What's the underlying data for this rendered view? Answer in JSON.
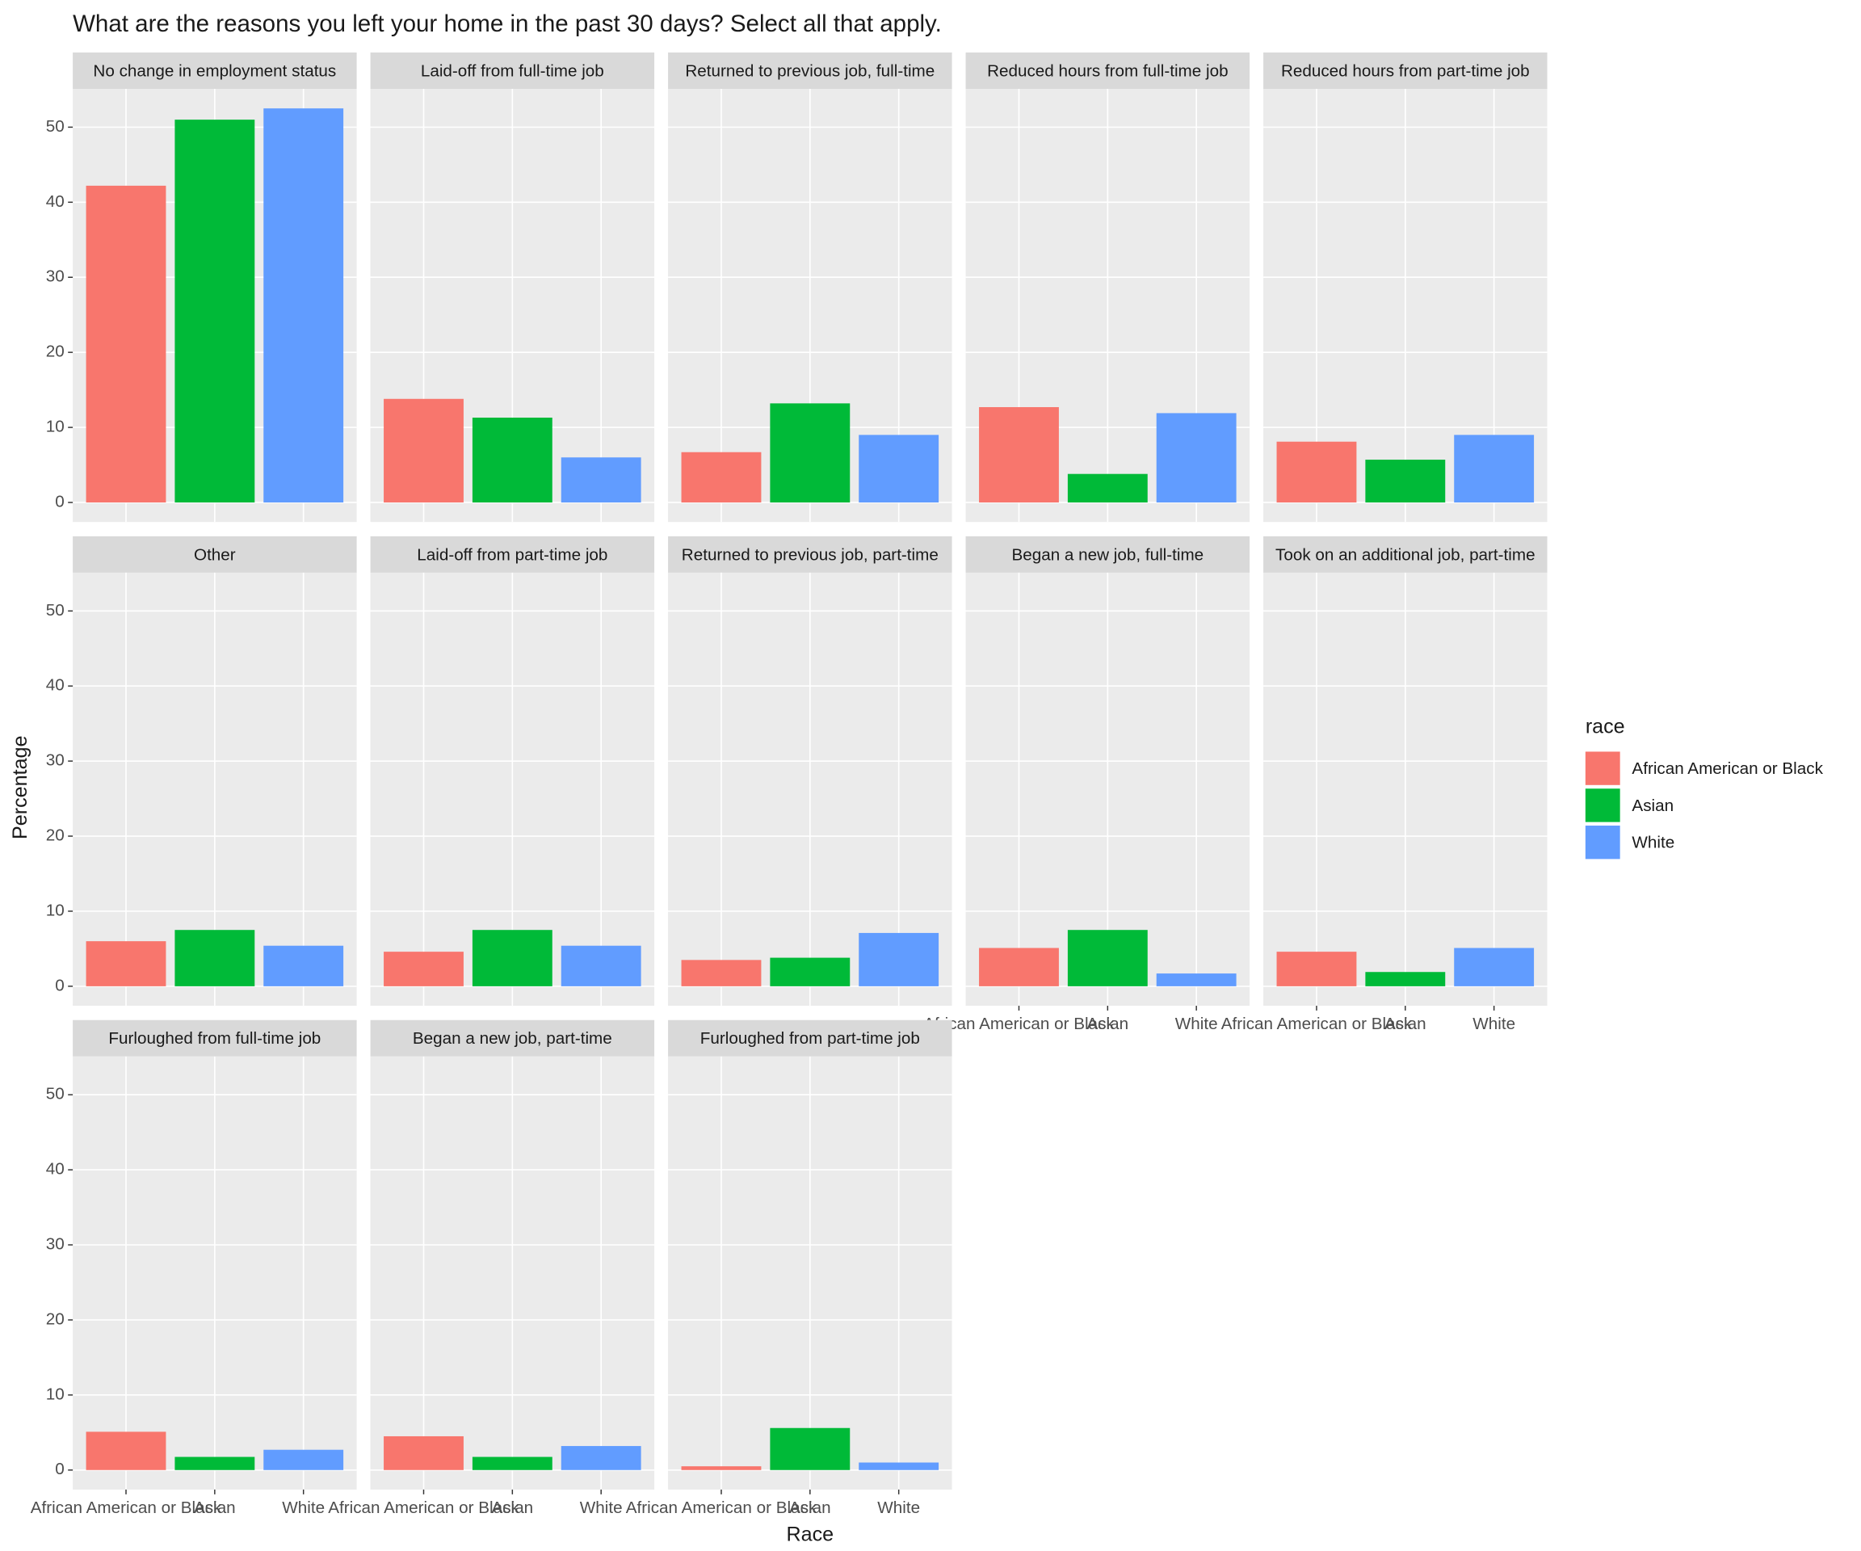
{
  "chart_data": {
    "type": "bar",
    "title": "What are the reasons you left your home in the past 30 days? Select all that apply.",
    "xlabel": "Race",
    "ylabel": "Percentage",
    "legend_title": "race",
    "categories": [
      "African American or Black",
      "Asian",
      "White"
    ],
    "colors": [
      "#f8766d",
      "#00ba38",
      "#619cff"
    ],
    "ylim": [
      -2.6,
      55.1
    ],
    "yticks": [
      0,
      10,
      20,
      30,
      40,
      50
    ],
    "grid": true,
    "ncol": 5,
    "facets": [
      {
        "title": "No change in employment status",
        "values": [
          42.2,
          51.0,
          52.5
        ]
      },
      {
        "title": "Laid-off from full-time job",
        "values": [
          13.8,
          11.3,
          6.0
        ]
      },
      {
        "title": "Returned to previous job, full-time",
        "values": [
          6.7,
          13.2,
          9.0
        ]
      },
      {
        "title": "Reduced hours from full-time job",
        "values": [
          12.7,
          3.8,
          11.9
        ]
      },
      {
        "title": "Reduced hours from part-time job",
        "values": [
          8.1,
          5.7,
          9.0
        ]
      },
      {
        "title": "Other",
        "values": [
          6.0,
          7.5,
          5.4
        ]
      },
      {
        "title": "Laid-off from part-time job",
        "values": [
          4.6,
          7.5,
          5.4
        ]
      },
      {
        "title": "Returned to previous job, part-time",
        "values": [
          3.5,
          3.8,
          7.1
        ]
      },
      {
        "title": "Began a new job, full-time",
        "values": [
          5.1,
          7.5,
          1.7
        ]
      },
      {
        "title": "Took on an additional job, part-time",
        "values": [
          4.6,
          1.9,
          5.1
        ]
      },
      {
        "title": "Furloughed from full-time job",
        "values": [
          5.1,
          1.75,
          2.7
        ]
      },
      {
        "title": "Began a new job, part-time",
        "values": [
          4.5,
          1.75,
          3.2
        ]
      },
      {
        "title": "Furloughed from part-time job",
        "values": [
          0.5,
          5.6,
          1.0
        ]
      }
    ]
  }
}
